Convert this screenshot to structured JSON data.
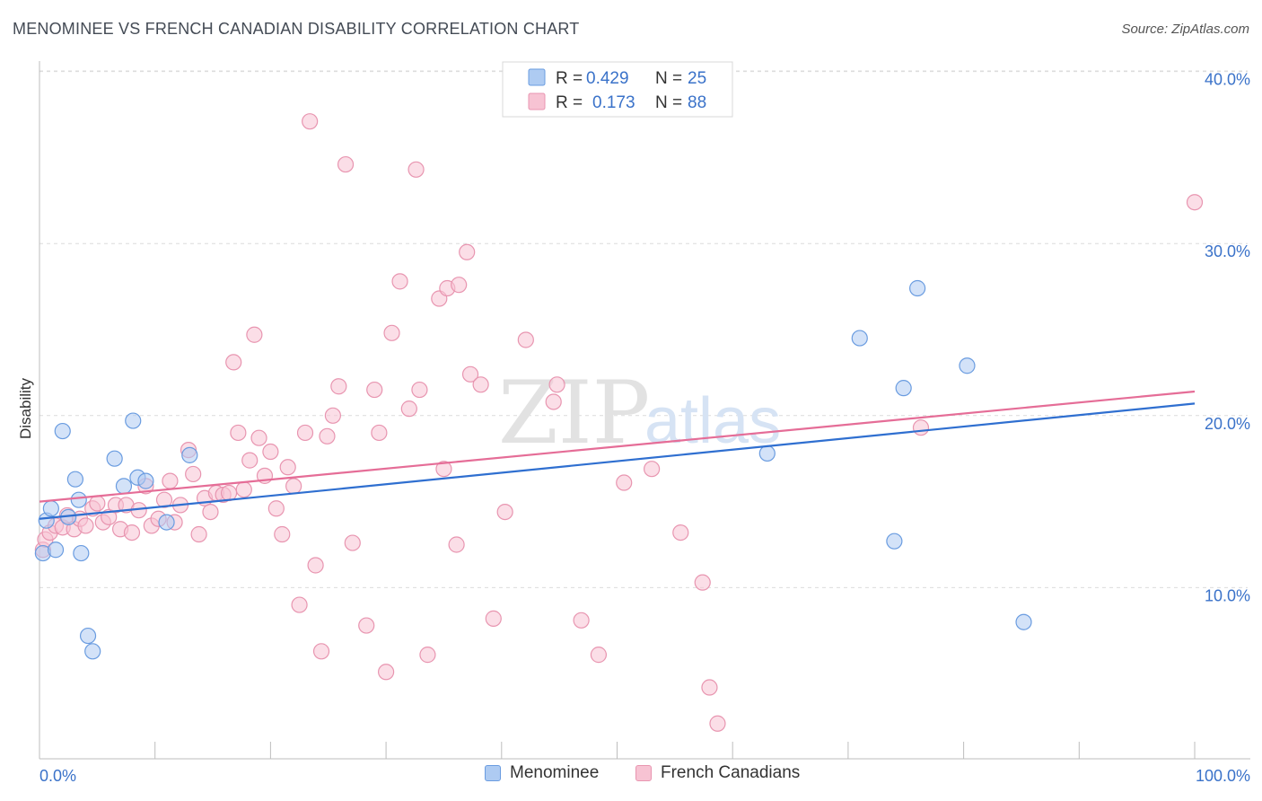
{
  "title": "MENOMINEE VS FRENCH CANADIAN DISABILITY CORRELATION CHART",
  "source": "Source: ZipAtlas.com",
  "watermark": {
    "zip": "ZIP",
    "atlas": "atlas"
  },
  "colors": {
    "blue_fill": "#aecbf2",
    "blue_stroke": "#6a9ce0",
    "blue_line": "#2f6fd0",
    "pink_fill": "#f7c3d3",
    "pink_stroke": "#e895b0",
    "pink_line": "#e56d97",
    "tick_text": "#3a72c9",
    "grid": "#dcdcdc"
  },
  "legend_top": {
    "rows": [
      {
        "r_label": "R = ",
        "r_value": "0.429",
        "n_label": "N = ",
        "n_value": "25"
      },
      {
        "r_label": "R = ",
        "r_value": "0.173",
        "n_label": "N = ",
        "n_value": "88"
      }
    ]
  },
  "legend_bottom": {
    "items": [
      "Menominee",
      "French Canadians"
    ]
  },
  "chart_data": {
    "type": "scatter",
    "title": "MENOMINEE VS FRENCH CANADIAN DISABILITY CORRELATION CHART",
    "xlabel": "",
    "ylabel": "Disability",
    "xlim": [
      0,
      100
    ],
    "ylim": [
      0,
      40
    ],
    "x_tick_labels": [
      "0.0%",
      "100.0%"
    ],
    "y_ticks": [
      10,
      20,
      30,
      40
    ],
    "y_tick_labels": [
      "10.0%",
      "20.0%",
      "30.0%",
      "40.0%"
    ],
    "series": [
      {
        "name": "Menominee",
        "r": 0.429,
        "n": 25,
        "trend": {
          "x": [
            0,
            100
          ],
          "y": [
            14.0,
            20.7
          ]
        },
        "points": [
          [
            0.3,
            12.0
          ],
          [
            0.6,
            13.9
          ],
          [
            1.0,
            14.6
          ],
          [
            1.4,
            12.2
          ],
          [
            2.0,
            19.1
          ],
          [
            2.5,
            14.1
          ],
          [
            3.1,
            16.3
          ],
          [
            3.4,
            15.1
          ],
          [
            3.6,
            12.0
          ],
          [
            4.2,
            7.2
          ],
          [
            4.6,
            6.3
          ],
          [
            6.5,
            17.5
          ],
          [
            7.3,
            15.9
          ],
          [
            8.1,
            19.7
          ],
          [
            8.5,
            16.4
          ],
          [
            9.2,
            16.2
          ],
          [
            11.0,
            13.8
          ],
          [
            13.0,
            17.7
          ],
          [
            63.0,
            17.8
          ],
          [
            71.0,
            24.5
          ],
          [
            74.0,
            12.7
          ],
          [
            74.8,
            21.6
          ],
          [
            76.0,
            27.4
          ],
          [
            80.3,
            22.9
          ],
          [
            85.2,
            8.0
          ]
        ]
      },
      {
        "name": "French Canadians",
        "r": 0.173,
        "n": 88,
        "trend": {
          "x": [
            0,
            100
          ],
          "y": [
            15.0,
            21.4
          ]
        },
        "points": [
          [
            0.3,
            12.2
          ],
          [
            0.5,
            12.8
          ],
          [
            0.9,
            13.2
          ],
          [
            1.4,
            13.6
          ],
          [
            2.0,
            13.5
          ],
          [
            2.4,
            14.2
          ],
          [
            3.0,
            13.4
          ],
          [
            3.5,
            14.0
          ],
          [
            4.0,
            13.6
          ],
          [
            4.6,
            14.6
          ],
          [
            5.0,
            14.9
          ],
          [
            5.5,
            13.8
          ],
          [
            6.0,
            14.1
          ],
          [
            6.6,
            14.8
          ],
          [
            7.0,
            13.4
          ],
          [
            7.5,
            14.8
          ],
          [
            8.0,
            13.2
          ],
          [
            8.6,
            14.5
          ],
          [
            9.2,
            15.9
          ],
          [
            9.7,
            13.6
          ],
          [
            10.3,
            14.0
          ],
          [
            10.8,
            15.1
          ],
          [
            11.3,
            16.2
          ],
          [
            11.7,
            13.8
          ],
          [
            12.2,
            14.8
          ],
          [
            12.9,
            18.0
          ],
          [
            13.3,
            16.6
          ],
          [
            13.8,
            13.1
          ],
          [
            14.3,
            15.2
          ],
          [
            14.8,
            14.4
          ],
          [
            15.3,
            15.5
          ],
          [
            15.9,
            15.4
          ],
          [
            16.4,
            15.5
          ],
          [
            16.8,
            23.1
          ],
          [
            17.2,
            19.0
          ],
          [
            17.7,
            15.7
          ],
          [
            18.2,
            17.4
          ],
          [
            18.6,
            24.7
          ],
          [
            19.0,
            18.7
          ],
          [
            19.5,
            16.5
          ],
          [
            20.0,
            17.9
          ],
          [
            20.5,
            14.6
          ],
          [
            21.0,
            13.1
          ],
          [
            21.5,
            17.0
          ],
          [
            22.0,
            15.9
          ],
          [
            22.5,
            9.0
          ],
          [
            23.0,
            19.0
          ],
          [
            23.4,
            37.1
          ],
          [
            23.9,
            11.3
          ],
          [
            24.4,
            6.3
          ],
          [
            24.9,
            18.8
          ],
          [
            25.4,
            20.0
          ],
          [
            25.9,
            21.7
          ],
          [
            26.5,
            34.6
          ],
          [
            27.1,
            12.6
          ],
          [
            28.3,
            7.8
          ],
          [
            29.0,
            21.5
          ],
          [
            29.4,
            19.0
          ],
          [
            30.0,
            5.1
          ],
          [
            30.5,
            24.8
          ],
          [
            31.2,
            27.8
          ],
          [
            32.0,
            20.4
          ],
          [
            32.6,
            34.3
          ],
          [
            32.9,
            21.5
          ],
          [
            33.6,
            6.1
          ],
          [
            34.6,
            26.8
          ],
          [
            35.0,
            16.9
          ],
          [
            35.3,
            27.4
          ],
          [
            36.1,
            12.5
          ],
          [
            36.3,
            27.6
          ],
          [
            37.0,
            29.5
          ],
          [
            37.3,
            22.4
          ],
          [
            38.2,
            21.8
          ],
          [
            39.3,
            8.2
          ],
          [
            40.3,
            14.4
          ],
          [
            42.1,
            24.4
          ],
          [
            44.5,
            20.8
          ],
          [
            44.8,
            21.8
          ],
          [
            46.9,
            8.1
          ],
          [
            48.4,
            6.1
          ],
          [
            50.6,
            16.1
          ],
          [
            53.0,
            16.9
          ],
          [
            55.5,
            13.2
          ],
          [
            57.4,
            10.3
          ],
          [
            58.0,
            4.2
          ],
          [
            58.7,
            2.1
          ],
          [
            76.3,
            19.3
          ],
          [
            100.0,
            32.4
          ]
        ]
      }
    ]
  }
}
